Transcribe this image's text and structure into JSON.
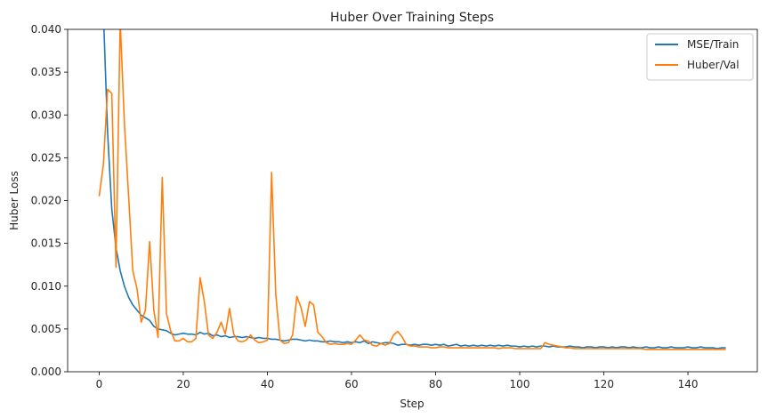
{
  "chart_data": {
    "type": "line",
    "title": "Huber Over Training Steps",
    "xlabel": "Step",
    "ylabel": "Huber Loss",
    "xlim": [
      -7.5,
      156.5
    ],
    "ylim": [
      0,
      0.04
    ],
    "xticks": [
      0,
      20,
      40,
      60,
      80,
      100,
      120,
      140
    ],
    "xtick_labels": [
      "0",
      "20",
      "40",
      "60",
      "80",
      "100",
      "120",
      "140"
    ],
    "yticks": [
      0.0,
      0.005,
      0.01,
      0.015,
      0.02,
      0.025,
      0.03,
      0.035,
      0.04
    ],
    "ytick_labels": [
      "0.000",
      "0.005",
      "0.010",
      "0.015",
      "0.020",
      "0.025",
      "0.030",
      "0.035",
      "0.040"
    ],
    "grid": false,
    "legend_position": "top-right",
    "series": [
      {
        "name": "MSE/Train",
        "color": "#1f77b4",
        "x": [
          0,
          1,
          2,
          3,
          4,
          5,
          6,
          7,
          8,
          9,
          10,
          11,
          12,
          13,
          14,
          15,
          16,
          17,
          18,
          19,
          20,
          21,
          22,
          23,
          24,
          25,
          26,
          27,
          28,
          29,
          30,
          31,
          32,
          33,
          34,
          35,
          36,
          37,
          38,
          39,
          40,
          41,
          42,
          43,
          44,
          45,
          46,
          47,
          48,
          49,
          50,
          51,
          52,
          53,
          54,
          55,
          56,
          57,
          58,
          59,
          60,
          61,
          62,
          63,
          64,
          65,
          66,
          67,
          68,
          69,
          70,
          71,
          72,
          73,
          74,
          75,
          76,
          77,
          78,
          79,
          80,
          81,
          82,
          83,
          84,
          85,
          86,
          87,
          88,
          89,
          90,
          91,
          92,
          93,
          94,
          95,
          96,
          97,
          98,
          99,
          100,
          101,
          102,
          103,
          104,
          105,
          106,
          107,
          108,
          109,
          110,
          111,
          112,
          113,
          114,
          115,
          116,
          117,
          118,
          119,
          120,
          121,
          122,
          123,
          124,
          125,
          126,
          127,
          128,
          129,
          130,
          131,
          132,
          133,
          134,
          135,
          136,
          137,
          138,
          139,
          140,
          141,
          142,
          143,
          144,
          145,
          146,
          147,
          148,
          149
        ],
        "y": [
          0.062,
          0.042,
          0.028,
          0.019,
          0.0145,
          0.0118,
          0.01,
          0.0087,
          0.0078,
          0.0072,
          0.0066,
          0.0063,
          0.006,
          0.0053,
          0.005,
          0.0049,
          0.0048,
          0.0045,
          0.0043,
          0.0044,
          0.0045,
          0.0044,
          0.0044,
          0.0043,
          0.0046,
          0.0044,
          0.0045,
          0.0042,
          0.0043,
          0.0041,
          0.0042,
          0.004,
          0.0041,
          0.0041,
          0.004,
          0.0041,
          0.004,
          0.0039,
          0.004,
          0.0039,
          0.0039,
          0.0038,
          0.0038,
          0.0037,
          0.0036,
          0.0037,
          0.0038,
          0.0038,
          0.0037,
          0.0036,
          0.0037,
          0.0036,
          0.0036,
          0.0035,
          0.0035,
          0.0036,
          0.0035,
          0.0035,
          0.0034,
          0.0035,
          0.0034,
          0.0035,
          0.0034,
          0.0036,
          0.0033,
          0.0035,
          0.0034,
          0.0033,
          0.0034,
          0.0034,
          0.0033,
          0.0031,
          0.0032,
          0.0032,
          0.0031,
          0.0032,
          0.0031,
          0.0032,
          0.0032,
          0.0031,
          0.0032,
          0.0031,
          0.0032,
          0.003,
          0.0031,
          0.0032,
          0.003,
          0.0031,
          0.003,
          0.0031,
          0.003,
          0.0031,
          0.003,
          0.0031,
          0.003,
          0.0031,
          0.003,
          0.0031,
          0.003,
          0.003,
          0.0029,
          0.003,
          0.0029,
          0.003,
          0.0029,
          0.003,
          0.003,
          0.0029,
          0.003,
          0.0029,
          0.0029,
          0.0029,
          0.003,
          0.0029,
          0.0029,
          0.0028,
          0.0029,
          0.0029,
          0.0028,
          0.0029,
          0.0029,
          0.0028,
          0.0029,
          0.0028,
          0.0029,
          0.0029,
          0.0028,
          0.0029,
          0.0028,
          0.0028,
          0.0029,
          0.0028,
          0.0028,
          0.0029,
          0.0028,
          0.0028,
          0.0029,
          0.0028,
          0.0028,
          0.0028,
          0.0029,
          0.0028,
          0.0028,
          0.0029,
          0.0028,
          0.0028,
          0.0028,
          0.0027,
          0.0028,
          0.0028
        ]
      },
      {
        "name": "Huber/Val",
        "color": "#ff7f0e",
        "x": [
          0,
          1,
          2,
          3,
          4,
          5,
          6,
          7,
          8,
          9,
          10,
          11,
          12,
          13,
          14,
          15,
          16,
          17,
          18,
          19,
          20,
          21,
          22,
          23,
          24,
          25,
          26,
          27,
          28,
          29,
          30,
          31,
          32,
          33,
          34,
          35,
          36,
          37,
          38,
          39,
          40,
          41,
          42,
          43,
          44,
          45,
          46,
          47,
          48,
          49,
          50,
          51,
          52,
          53,
          54,
          55,
          56,
          57,
          58,
          59,
          60,
          61,
          62,
          63,
          64,
          65,
          66,
          67,
          68,
          69,
          70,
          71,
          72,
          73,
          74,
          75,
          76,
          77,
          78,
          79,
          80,
          81,
          82,
          83,
          84,
          85,
          86,
          87,
          88,
          89,
          90,
          91,
          92,
          93,
          94,
          95,
          96,
          97,
          98,
          99,
          100,
          101,
          102,
          103,
          104,
          105,
          106,
          107,
          108,
          109,
          110,
          111,
          112,
          113,
          114,
          115,
          116,
          117,
          118,
          119,
          120,
          121,
          122,
          123,
          124,
          125,
          126,
          127,
          128,
          129,
          130,
          131,
          132,
          133,
          134,
          135,
          136,
          137,
          138,
          139,
          140,
          141,
          142,
          143,
          144,
          145,
          146,
          147,
          148,
          149
        ],
        "y": [
          0.0205,
          0.0242,
          0.033,
          0.0325,
          0.0122,
          0.041,
          0.029,
          0.0205,
          0.0118,
          0.0097,
          0.0058,
          0.0072,
          0.0152,
          0.0072,
          0.004,
          0.0227,
          0.0068,
          0.0048,
          0.0036,
          0.0036,
          0.0039,
          0.0035,
          0.0035,
          0.0039,
          0.011,
          0.0082,
          0.0043,
          0.0039,
          0.0046,
          0.0058,
          0.0044,
          0.0074,
          0.0044,
          0.0036,
          0.0035,
          0.0037,
          0.0043,
          0.0037,
          0.0034,
          0.0035,
          0.0037,
          0.0233,
          0.009,
          0.0037,
          0.0033,
          0.0034,
          0.0043,
          0.0088,
          0.0075,
          0.0053,
          0.0082,
          0.0078,
          0.0046,
          0.0041,
          0.0034,
          0.0032,
          0.0033,
          0.0032,
          0.0032,
          0.0033,
          0.0032,
          0.0037,
          0.0043,
          0.0037,
          0.0036,
          0.0031,
          0.003,
          0.0033,
          0.0031,
          0.0033,
          0.0043,
          0.0047,
          0.0041,
          0.0032,
          0.003,
          0.003,
          0.0029,
          0.0029,
          0.0029,
          0.0028,
          0.0028,
          0.0029,
          0.0029,
          0.0028,
          0.0028,
          0.0028,
          0.0028,
          0.0028,
          0.0028,
          0.0028,
          0.0028,
          0.0028,
          0.0028,
          0.0028,
          0.0028,
          0.0027,
          0.0028,
          0.0028,
          0.0028,
          0.0027,
          0.0027,
          0.0027,
          0.0027,
          0.0027,
          0.0027,
          0.0027,
          0.0034,
          0.0032,
          0.0031,
          0.003,
          0.0029,
          0.0028,
          0.0028,
          0.0027,
          0.0027,
          0.0027,
          0.0027,
          0.0027,
          0.0027,
          0.0027,
          0.0027,
          0.0027,
          0.0027,
          0.0027,
          0.0027,
          0.0027,
          0.0027,
          0.0027,
          0.0027,
          0.0027,
          0.0026,
          0.0026,
          0.0026,
          0.0026,
          0.0026,
          0.0026,
          0.0026,
          0.0026,
          0.0026,
          0.0026,
          0.0026,
          0.0026,
          0.0026,
          0.0026,
          0.0026,
          0.0026,
          0.0026,
          0.0026,
          0.0026,
          0.0026
        ]
      }
    ]
  }
}
